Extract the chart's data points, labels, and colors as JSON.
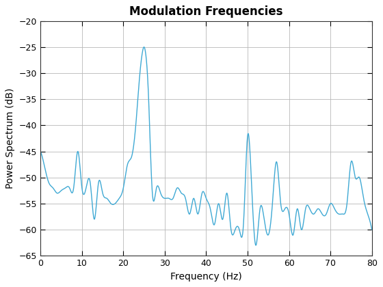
{
  "title": "Modulation Frequencies",
  "xlabel": "Frequency (Hz)",
  "ylabel": "Power Spectrum (dB)",
  "xlim": [
    0,
    80
  ],
  "ylim": [
    -65,
    -20
  ],
  "xticks": [
    0,
    10,
    20,
    30,
    40,
    50,
    60,
    70,
    80
  ],
  "yticks": [
    -65,
    -60,
    -55,
    -50,
    -45,
    -40,
    -35,
    -30,
    -25,
    -20
  ],
  "line_color": "#3FA9D4",
  "line_width": 1.0,
  "background_color": "#ffffff",
  "grid_color": "#b8b8b8",
  "title_fontsize": 12,
  "label_fontsize": 10
}
